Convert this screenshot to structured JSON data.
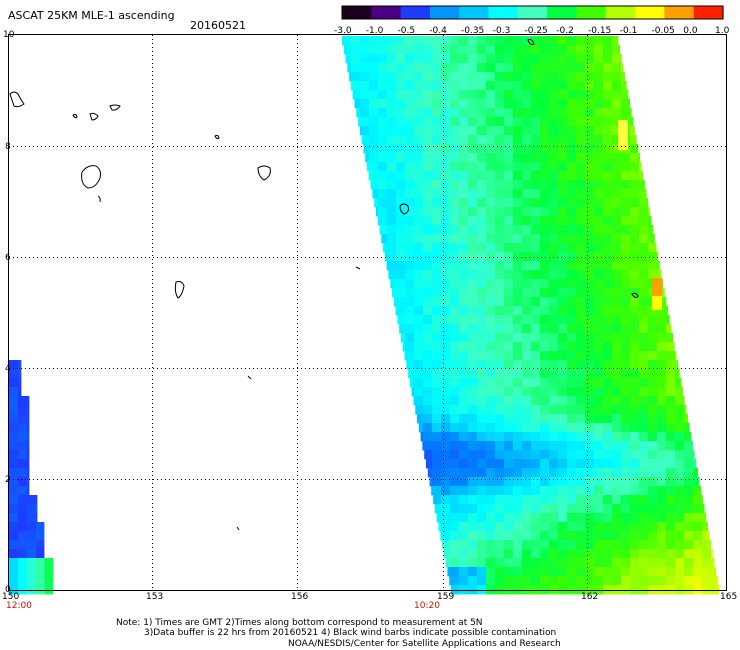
{
  "header": {
    "title": "ASCAT 25KM MLE-1 ascending",
    "date": "20160521"
  },
  "colorbar": {
    "ticks": [
      "-3.0",
      "-1.0",
      "-0.5",
      "-0.4",
      "-0.35",
      "-0.3",
      "-0.25",
      "-0.2",
      "-0.15",
      "-0.1",
      "-0.05",
      "0.0",
      "1.0"
    ],
    "colors": [
      "#1a001a",
      "#4b0082",
      "#1e3cff",
      "#0096ff",
      "#00c8ff",
      "#00ffff",
      "#40ffc0",
      "#00ff40",
      "#40ff00",
      "#b4ff00",
      "#ffff00",
      "#ffa000",
      "#ff2000"
    ]
  },
  "map": {
    "x_ticks": [
      "150",
      "153",
      "156",
      "159",
      "162",
      "165"
    ],
    "y_ticks": [
      "0",
      "2",
      "4",
      "6",
      "8",
      "10"
    ],
    "time_labels": [
      "12:00",
      "10:20"
    ]
  },
  "footer": {
    "line1": "Note: 1) Times are GMT 2)Times along bottom correspond to measurement at 5N",
    "line2": "3)Data buffer is 22 hrs from 20160521 4) Black wind barbs indicate possible contamination",
    "line3": "NOAA/NESDIS/Center for Satellite Applications and Research"
  }
}
